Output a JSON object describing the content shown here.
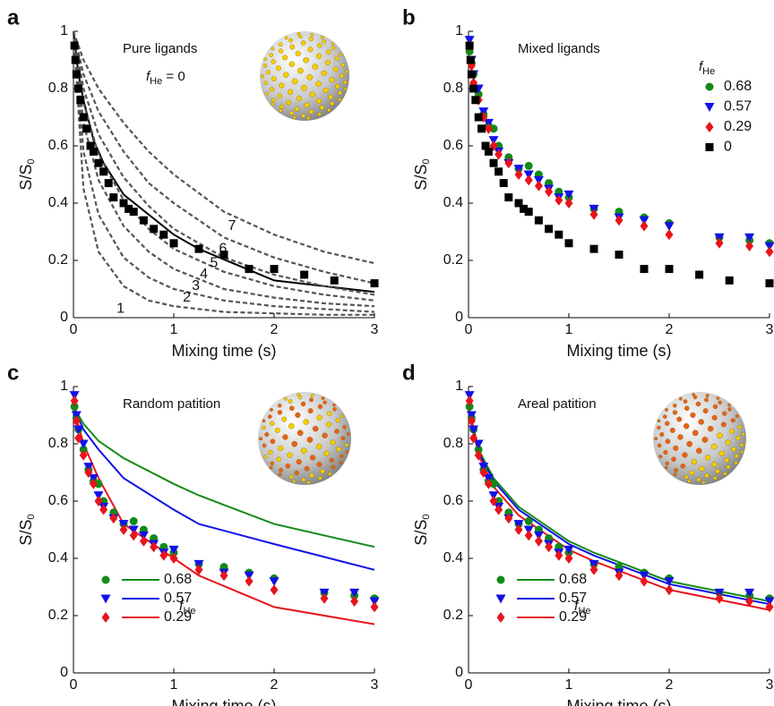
{
  "chart_data": [
    {
      "type": "scatter",
      "letter": "a",
      "title": "Pure ligands",
      "annotation": {
        "symbol": "f",
        "subscript": "He",
        "text": " = 0"
      },
      "xlabel": "Mixing time (s)",
      "ylabel": {
        "text": "S/S",
        "subscript": "0"
      },
      "xlim": [
        0,
        3
      ],
      "ylim": [
        0,
        1
      ],
      "xticks": [
        0,
        1,
        2,
        3
      ],
      "yticks": [
        0,
        0.2,
        0.4,
        0.6,
        0.8,
        1
      ],
      "series": [
        {
          "style": "markers",
          "marker": "square",
          "color": "#000000",
          "x": [
            0.01,
            0.02,
            0.03,
            0.05,
            0.07,
            0.1,
            0.13,
            0.17,
            0.2,
            0.25,
            0.3,
            0.35,
            0.4,
            0.5,
            0.55,
            0.6,
            0.7,
            0.8,
            0.9,
            1.0,
            1.25,
            1.5,
            1.75,
            2.0,
            2.3,
            2.6,
            3.0
          ],
          "values": [
            0.95,
            0.9,
            0.85,
            0.8,
            0.76,
            0.7,
            0.66,
            0.6,
            0.58,
            0.54,
            0.51,
            0.47,
            0.42,
            0.4,
            0.38,
            0.37,
            0.34,
            0.31,
            0.29,
            0.26,
            0.24,
            0.22,
            0.17,
            0.17,
            0.15,
            0.13,
            0.12
          ]
        },
        {
          "style": "line",
          "color": "#000000",
          "x": [
            0,
            0.05,
            0.1,
            0.2,
            0.3,
            0.5,
            1,
            1.25,
            2,
            3
          ],
          "values": [
            1,
            0.85,
            0.76,
            0.62,
            0.54,
            0.43,
            0.29,
            0.24,
            0.13,
            0.09
          ]
        },
        {
          "style": "dashed",
          "name": "1",
          "color": "#555555",
          "x": [
            0,
            0.1,
            0.25,
            0.5,
            0.75,
            1,
            1.5,
            2,
            2.5,
            3
          ],
          "values": [
            1,
            0.45,
            0.23,
            0.11,
            0.06,
            0.04,
            0.02,
            0.015,
            0.01,
            0.01
          ]
        },
        {
          "style": "dashed",
          "name": "2",
          "color": "#555555",
          "x": [
            0,
            0.1,
            0.25,
            0.5,
            0.75,
            1,
            1.5,
            2,
            2.5,
            3
          ],
          "values": [
            1,
            0.58,
            0.36,
            0.21,
            0.14,
            0.1,
            0.06,
            0.04,
            0.03,
            0.02
          ]
        },
        {
          "style": "dashed",
          "name": "3",
          "color": "#555555",
          "x": [
            0,
            0.1,
            0.25,
            0.5,
            0.75,
            1,
            1.5,
            2,
            2.5,
            3
          ],
          "values": [
            1,
            0.68,
            0.48,
            0.32,
            0.23,
            0.17,
            0.1,
            0.07,
            0.05,
            0.04
          ]
        },
        {
          "style": "dashed",
          "name": "4",
          "color": "#555555",
          "x": [
            0,
            0.1,
            0.25,
            0.5,
            0.75,
            1,
            1.5,
            2,
            2.5,
            3
          ],
          "values": [
            1,
            0.75,
            0.57,
            0.41,
            0.31,
            0.24,
            0.16,
            0.11,
            0.08,
            0.06
          ]
        },
        {
          "style": "dashed",
          "name": "5",
          "color": "#555555",
          "x": [
            0,
            0.1,
            0.25,
            0.5,
            0.75,
            1,
            1.5,
            2,
            2.5,
            3
          ],
          "values": [
            1,
            0.8,
            0.64,
            0.49,
            0.39,
            0.31,
            0.21,
            0.15,
            0.11,
            0.08
          ]
        },
        {
          "style": "dashed",
          "name": "6",
          "color": "#555555",
          "x": [
            0,
            0.1,
            0.25,
            0.5,
            0.75,
            1,
            1.5,
            2,
            2.5,
            3
          ],
          "values": [
            1,
            0.85,
            0.72,
            0.58,
            0.47,
            0.4,
            0.28,
            0.21,
            0.16,
            0.12
          ]
        },
        {
          "style": "dashed",
          "name": "7",
          "color": "#555555",
          "x": [
            0,
            0.1,
            0.25,
            0.5,
            0.75,
            1,
            1.5,
            2,
            2.5,
            3
          ],
          "values": [
            1,
            0.9,
            0.8,
            0.68,
            0.58,
            0.5,
            0.37,
            0.29,
            0.23,
            0.19
          ]
        }
      ]
    },
    {
      "type": "scatter",
      "letter": "b",
      "title": "Mixed ligands",
      "legend": "upper right",
      "legend_title": {
        "symbol": "f",
        "subscript": "He"
      },
      "xlabel": "Mixing time (s)",
      "ylabel": {
        "text": "S/S",
        "subscript": "0"
      },
      "xlim": [
        0,
        3
      ],
      "ylim": [
        0,
        1
      ],
      "xticks": [
        0,
        1,
        2,
        3
      ],
      "yticks": [
        0,
        0.2,
        0.4,
        0.6,
        0.8,
        1
      ],
      "series": [
        {
          "style": "markers",
          "name": "0.68",
          "marker": "circle",
          "color": "#138a17",
          "x": [
            0.01,
            0.03,
            0.05,
            0.1,
            0.15,
            0.2,
            0.25,
            0.3,
            0.4,
            0.5,
            0.6,
            0.7,
            0.8,
            0.9,
            1.0,
            1.25,
            1.5,
            1.75,
            2.0,
            2.5,
            2.8,
            3.0
          ],
          "values": [
            0.93,
            0.89,
            0.85,
            0.78,
            0.71,
            0.67,
            0.66,
            0.6,
            0.56,
            0.52,
            0.53,
            0.5,
            0.47,
            0.44,
            0.42,
            0.38,
            0.37,
            0.35,
            0.33,
            0.28,
            0.27,
            0.26
          ]
        },
        {
          "style": "markers",
          "name": "0.57",
          "marker": "triangle",
          "color": "#1212e6",
          "x": [
            0.01,
            0.03,
            0.05,
            0.1,
            0.15,
            0.2,
            0.25,
            0.3,
            0.4,
            0.5,
            0.6,
            0.7,
            0.8,
            0.9,
            1.0,
            1.25,
            1.5,
            1.75,
            2.0,
            2.5,
            2.8,
            3.0
          ],
          "values": [
            0.97,
            0.9,
            0.85,
            0.8,
            0.72,
            0.68,
            0.62,
            0.58,
            0.54,
            0.52,
            0.5,
            0.48,
            0.45,
            0.42,
            0.43,
            0.38,
            0.35,
            0.34,
            0.32,
            0.28,
            0.28,
            0.25
          ]
        },
        {
          "style": "markers",
          "name": "0.29",
          "marker": "diamond",
          "color": "#e8141c",
          "x": [
            0.01,
            0.03,
            0.05,
            0.1,
            0.15,
            0.2,
            0.25,
            0.3,
            0.4,
            0.5,
            0.6,
            0.7,
            0.8,
            0.9,
            1.0,
            1.25,
            1.5,
            1.75,
            2.0,
            2.5,
            2.8,
            3.0
          ],
          "values": [
            0.95,
            0.88,
            0.82,
            0.76,
            0.7,
            0.66,
            0.6,
            0.57,
            0.54,
            0.5,
            0.48,
            0.46,
            0.44,
            0.41,
            0.4,
            0.36,
            0.34,
            0.32,
            0.29,
            0.26,
            0.25,
            0.23
          ]
        },
        {
          "style": "markers",
          "name": "0",
          "marker": "square",
          "color": "#000000",
          "x": [
            0.01,
            0.02,
            0.03,
            0.05,
            0.07,
            0.1,
            0.13,
            0.17,
            0.2,
            0.25,
            0.3,
            0.35,
            0.4,
            0.5,
            0.55,
            0.6,
            0.7,
            0.8,
            0.9,
            1.0,
            1.25,
            1.5,
            1.75,
            2.0,
            2.3,
            2.6,
            3.0
          ],
          "values": [
            0.95,
            0.9,
            0.85,
            0.8,
            0.76,
            0.7,
            0.66,
            0.6,
            0.58,
            0.54,
            0.51,
            0.47,
            0.42,
            0.4,
            0.38,
            0.37,
            0.34,
            0.31,
            0.29,
            0.26,
            0.24,
            0.22,
            0.17,
            0.17,
            0.15,
            0.13,
            0.12
          ]
        }
      ]
    },
    {
      "type": "scatter",
      "letter": "c",
      "title": "Random patition",
      "legend": "lower left",
      "legend_title": {
        "symbol": "f",
        "subscript": "He"
      },
      "xlabel": "Mixing time (s)",
      "ylabel": {
        "text": "S/S",
        "subscript": "0"
      },
      "xlim": [
        0,
        3
      ],
      "ylim": [
        0,
        1
      ],
      "xticks": [
        0,
        1,
        2,
        3
      ],
      "yticks": [
        0,
        0.2,
        0.4,
        0.6,
        0.8,
        1
      ],
      "series": [
        {
          "style": "markers",
          "name": "0.68",
          "marker": "circle",
          "color": "#138a17",
          "x": [
            0.01,
            0.03,
            0.05,
            0.1,
            0.15,
            0.2,
            0.25,
            0.3,
            0.4,
            0.5,
            0.6,
            0.7,
            0.8,
            0.9,
            1.0,
            1.25,
            1.5,
            1.75,
            2.0,
            2.5,
            2.8,
            3.0
          ],
          "values": [
            0.93,
            0.89,
            0.85,
            0.78,
            0.71,
            0.67,
            0.66,
            0.6,
            0.56,
            0.52,
            0.53,
            0.5,
            0.47,
            0.44,
            0.42,
            0.38,
            0.37,
            0.35,
            0.33,
            0.28,
            0.27,
            0.26
          ],
          "fit_x": [
            0,
            0.1,
            0.25,
            0.5,
            1,
            1.25,
            2,
            3
          ],
          "fit_values": [
            0.93,
            0.87,
            0.81,
            0.75,
            0.66,
            0.62,
            0.52,
            0.44
          ]
        },
        {
          "style": "markers",
          "name": "0.57",
          "marker": "triangle",
          "color": "#1212e6",
          "x": [
            0.01,
            0.03,
            0.05,
            0.1,
            0.15,
            0.2,
            0.25,
            0.3,
            0.4,
            0.5,
            0.6,
            0.7,
            0.8,
            0.9,
            1.0,
            1.25,
            1.5,
            1.75,
            2.0,
            2.5,
            2.8,
            3.0
          ],
          "values": [
            0.97,
            0.9,
            0.85,
            0.8,
            0.72,
            0.68,
            0.62,
            0.58,
            0.54,
            0.52,
            0.5,
            0.48,
            0.45,
            0.42,
            0.43,
            0.38,
            0.35,
            0.34,
            0.32,
            0.28,
            0.28,
            0.25
          ],
          "fit_x": [
            0,
            0.1,
            0.25,
            0.5,
            1,
            1.25,
            2,
            3
          ],
          "fit_values": [
            0.93,
            0.85,
            0.78,
            0.68,
            0.57,
            0.52,
            0.45,
            0.36
          ]
        },
        {
          "style": "markers",
          "name": "0.29",
          "marker": "diamond",
          "color": "#e8141c",
          "x": [
            0.01,
            0.03,
            0.05,
            0.1,
            0.15,
            0.2,
            0.25,
            0.3,
            0.4,
            0.5,
            0.6,
            0.7,
            0.8,
            0.9,
            1.0,
            1.25,
            1.5,
            1.75,
            2.0,
            2.5,
            2.8,
            3.0
          ],
          "values": [
            0.95,
            0.88,
            0.82,
            0.76,
            0.7,
            0.66,
            0.6,
            0.57,
            0.54,
            0.5,
            0.48,
            0.46,
            0.44,
            0.41,
            0.4,
            0.36,
            0.34,
            0.32,
            0.29,
            0.26,
            0.25,
            0.23
          ],
          "fit_x": [
            0,
            0.1,
            0.25,
            0.5,
            1,
            1.25,
            2,
            3
          ],
          "fit_values": [
            0.93,
            0.8,
            0.68,
            0.52,
            0.4,
            0.34,
            0.23,
            0.17
          ]
        }
      ]
    },
    {
      "type": "scatter",
      "letter": "d",
      "title": "Areal patition",
      "legend": "lower left",
      "legend_title": {
        "symbol": "f",
        "subscript": "He"
      },
      "xlabel": "Mixing time (s)",
      "ylabel": {
        "text": "S/S",
        "subscript": "0"
      },
      "xlim": [
        0,
        3
      ],
      "ylim": [
        0,
        1
      ],
      "xticks": [
        0,
        1,
        2,
        3
      ],
      "yticks": [
        0,
        0.2,
        0.4,
        0.6,
        0.8,
        1
      ],
      "series": [
        {
          "style": "markers",
          "name": "0.68",
          "marker": "circle",
          "color": "#138a17",
          "x": [
            0.01,
            0.03,
            0.05,
            0.1,
            0.15,
            0.2,
            0.25,
            0.3,
            0.4,
            0.5,
            0.6,
            0.7,
            0.8,
            0.9,
            1.0,
            1.25,
            1.5,
            1.75,
            2.0,
            2.5,
            2.8,
            3.0
          ],
          "values": [
            0.93,
            0.89,
            0.85,
            0.78,
            0.71,
            0.67,
            0.66,
            0.6,
            0.56,
            0.52,
            0.53,
            0.5,
            0.47,
            0.44,
            0.42,
            0.38,
            0.37,
            0.35,
            0.33,
            0.28,
            0.27,
            0.26
          ],
          "fit_x": [
            0,
            0.1,
            0.25,
            0.5,
            1,
            1.25,
            2,
            3
          ],
          "fit_values": [
            0.93,
            0.78,
            0.68,
            0.58,
            0.46,
            0.42,
            0.32,
            0.25
          ]
        },
        {
          "style": "markers",
          "name": "0.57",
          "marker": "triangle",
          "color": "#1212e6",
          "x": [
            0.01,
            0.03,
            0.05,
            0.1,
            0.15,
            0.2,
            0.25,
            0.3,
            0.4,
            0.5,
            0.6,
            0.7,
            0.8,
            0.9,
            1.0,
            1.25,
            1.5,
            1.75,
            2.0,
            2.5,
            2.8,
            3.0
          ],
          "values": [
            0.97,
            0.9,
            0.85,
            0.8,
            0.72,
            0.68,
            0.62,
            0.58,
            0.54,
            0.52,
            0.5,
            0.48,
            0.45,
            0.42,
            0.43,
            0.38,
            0.35,
            0.34,
            0.32,
            0.28,
            0.28,
            0.25
          ],
          "fit_x": [
            0,
            0.1,
            0.25,
            0.5,
            1,
            1.25,
            2,
            3
          ],
          "fit_values": [
            0.93,
            0.77,
            0.67,
            0.57,
            0.45,
            0.41,
            0.31,
            0.24
          ]
        },
        {
          "style": "markers",
          "name": "0.29",
          "marker": "diamond",
          "color": "#e8141c",
          "x": [
            0.01,
            0.03,
            0.05,
            0.1,
            0.15,
            0.2,
            0.25,
            0.3,
            0.4,
            0.5,
            0.6,
            0.7,
            0.8,
            0.9,
            1.0,
            1.25,
            1.5,
            1.75,
            2.0,
            2.5,
            2.8,
            3.0
          ],
          "values": [
            0.95,
            0.88,
            0.82,
            0.76,
            0.7,
            0.66,
            0.6,
            0.57,
            0.54,
            0.5,
            0.48,
            0.46,
            0.44,
            0.41,
            0.4,
            0.36,
            0.34,
            0.32,
            0.29,
            0.26,
            0.25,
            0.23
          ],
          "fit_x": [
            0,
            0.1,
            0.25,
            0.5,
            1,
            1.25,
            2,
            3
          ],
          "fit_values": [
            0.93,
            0.76,
            0.65,
            0.55,
            0.43,
            0.39,
            0.29,
            0.22
          ]
        }
      ]
    }
  ]
}
